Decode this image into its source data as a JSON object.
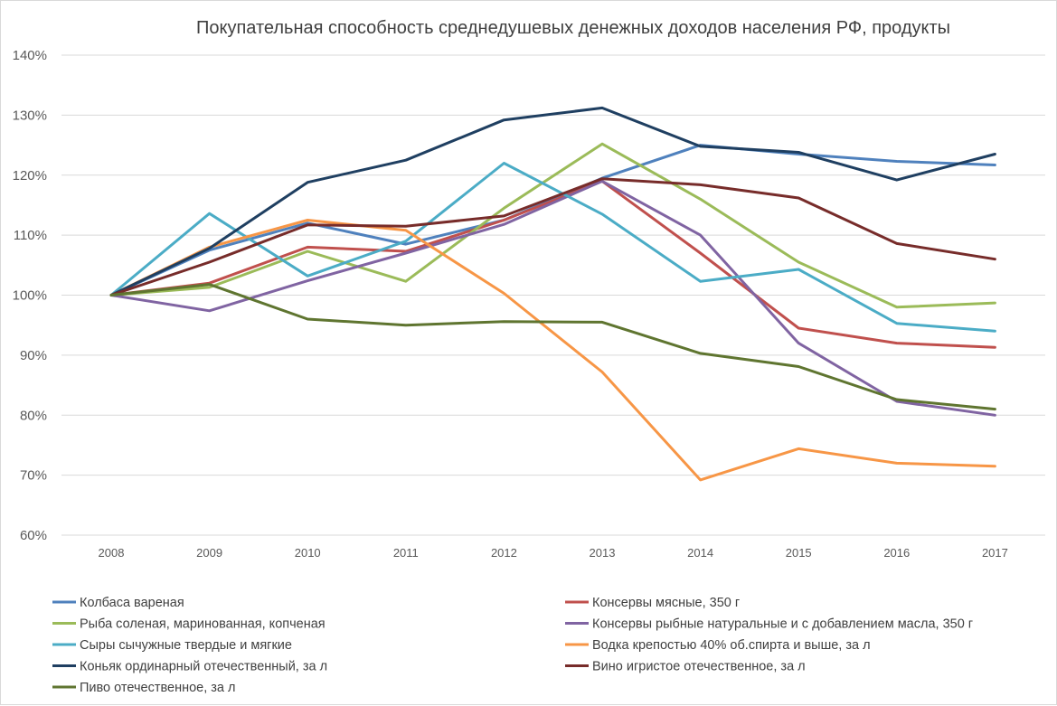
{
  "chart_data": {
    "type": "line",
    "title": "Покупательная способность среднедушевых денежных доходов населения РФ, продукты",
    "xlabel": "",
    "ylabel": "",
    "ylim": [
      60,
      140
    ],
    "yticks": [
      60,
      70,
      80,
      90,
      100,
      110,
      120,
      130,
      140
    ],
    "ytick_labels": [
      "60%",
      "70%",
      "80%",
      "90%",
      "100%",
      "110%",
      "120%",
      "130%",
      "140%"
    ],
    "categories": [
      "2008",
      "2009",
      "2010",
      "2011",
      "2012",
      "2013",
      "2014",
      "2015",
      "2016",
      "2017"
    ],
    "grid": true,
    "legend_position": "bottom",
    "series": [
      {
        "name": "Колбаса вареная",
        "color": "#4f81bd",
        "values": [
          100,
          107.5,
          112,
          108.5,
          112.5,
          119.5,
          125,
          123.5,
          122.3,
          121.7
        ]
      },
      {
        "name": "Консервы мясные, 350 г",
        "color": "#c0504d",
        "values": [
          100,
          102,
          108,
          107.3,
          112.5,
          119,
          107,
          94.5,
          92,
          91.3
        ]
      },
      {
        "name": "Рыба соленая, маринованная, копченая",
        "color": "#9bbb59",
        "values": [
          100,
          101.3,
          107.3,
          102.3,
          114.5,
          125.2,
          116,
          105.5,
          98,
          98.7
        ]
      },
      {
        "name": "Консервы рыбные натуральные и с добавлением масла, 350 г",
        "color": "#8064a2",
        "values": [
          100,
          97.4,
          102.4,
          107,
          111.8,
          119,
          110,
          92,
          82.3,
          80
        ]
      },
      {
        "name": "Сыры сычужные твердые и мягкие",
        "color": "#4bacc6",
        "values": [
          100,
          113.6,
          103.2,
          109,
          122,
          113.5,
          102.3,
          104.3,
          95.3,
          94
        ]
      },
      {
        "name": "Водка крепостью 40% об.спирта и выше, за л",
        "color": "#f79646",
        "values": [
          100,
          108,
          112.5,
          110.8,
          100.3,
          87.2,
          69.2,
          74.4,
          72,
          71.5
        ]
      },
      {
        "name": "Коньяк ординарный отечественный, за л",
        "color": "#1f3f61",
        "values": [
          100,
          107.8,
          118.8,
          122.5,
          129.2,
          131.2,
          124.8,
          123.8,
          119.2,
          123.5
        ]
      },
      {
        "name": "Вино игристое отечественное, за л",
        "color": "#772c2a",
        "values": [
          100,
          105.5,
          111.7,
          111.5,
          113.2,
          119.4,
          118.4,
          116.2,
          108.6,
          106
        ]
      },
      {
        "name": "Пиво отечественное, за л",
        "color": "#5f7530",
        "values": [
          100,
          101.8,
          96,
          95,
          95.6,
          95.5,
          90.3,
          88.1,
          82.6,
          81
        ]
      }
    ]
  }
}
